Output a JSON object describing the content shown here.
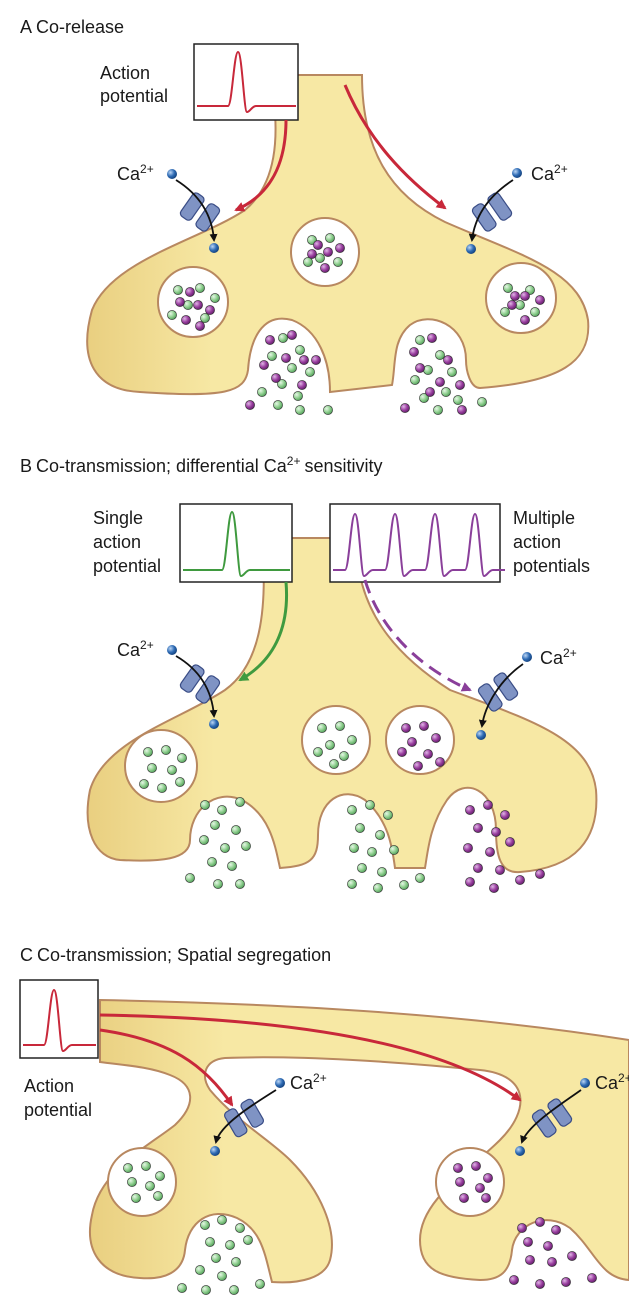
{
  "panels": [
    {
      "letter": "A",
      "title": "Co-release",
      "trace_labels": [
        "Action",
        "potential"
      ],
      "ion_labels": [
        "Ca",
        "Ca"
      ]
    },
    {
      "letter": "B",
      "title_pre": "Co-transmission; differential Ca",
      "title_post": "sensitivity",
      "left_trace_labels": [
        "Single",
        "action",
        "potential"
      ],
      "right_trace_labels": [
        "Multiple",
        "action",
        "potentials"
      ],
      "ion_labels": [
        "Ca",
        "Ca"
      ]
    },
    {
      "letter": "C",
      "title": "Co-transmission; Spatial segregation",
      "trace_labels": [
        "Action",
        "potential"
      ],
      "ion_labels": [
        "Ca",
        "Ca"
      ]
    }
  ],
  "ion_charge": "2+",
  "colors": {
    "terminal_fill": "#f6e7a0",
    "terminal_edge": "#b88860",
    "red_arrow": "#c8283a",
    "green_arrow": "#3f9a3f",
    "purple_arrow": "#8a3f9a",
    "green_transmitter": "#8fcf8f",
    "purple_transmitter": "#9a3fa0",
    "calcium": "#2f6cb5",
    "channel": "#7f93c4"
  },
  "icons": [
    "action-potential-trace",
    "calcium-channel-icon",
    "calcium-ion-icon",
    "vesicle-icon"
  ]
}
